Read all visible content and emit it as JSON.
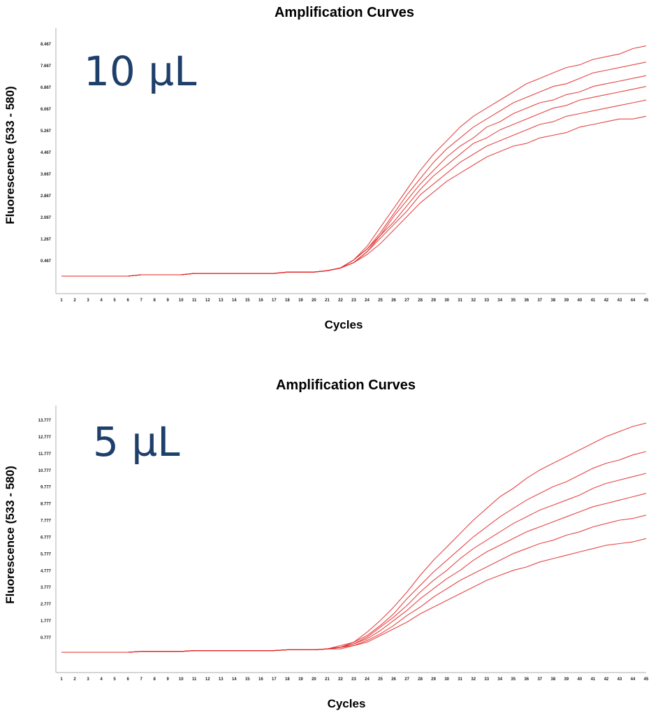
{
  "chart_data": [
    {
      "type": "line",
      "title": "Amplification Curves",
      "xlabel": "Cycles",
      "ylabel": "Fluorescence (533 - 580)",
      "annotation": "10 µL",
      "color": "#e02424",
      "annotation_color": "#1f3f6b",
      "x": [
        1,
        2,
        3,
        4,
        5,
        6,
        7,
        8,
        9,
        10,
        11,
        12,
        13,
        14,
        15,
        16,
        17,
        18,
        19,
        20,
        21,
        22,
        23,
        24,
        25,
        26,
        27,
        28,
        29,
        30,
        31,
        32,
        33,
        34,
        35,
        36,
        37,
        38,
        39,
        40,
        41,
        42,
        43,
        44,
        45
      ],
      "xlim": [
        1,
        45
      ],
      "ylim": [
        -0.2,
        8.9
      ],
      "yticks": [
        "0.467",
        "1.267",
        "2.067",
        "2.867",
        "3.667",
        "4.467",
        "5.267",
        "6.067",
        "6.867",
        "7.667",
        "8.467"
      ],
      "ytick_values": [
        0.467,
        1.267,
        2.067,
        2.867,
        3.667,
        4.467,
        5.267,
        6.067,
        6.867,
        7.667,
        8.467
      ],
      "grid": false,
      "series": [
        {
          "values": [
            -0.1,
            -0.1,
            -0.1,
            -0.1,
            -0.1,
            -0.1,
            -0.05,
            -0.05,
            -0.05,
            -0.05,
            0,
            0,
            0,
            0,
            0,
            0,
            0,
            0.05,
            0.05,
            0.05,
            0.1,
            0.2,
            0.4,
            0.7,
            1.1,
            1.6,
            2.1,
            2.6,
            3.0,
            3.4,
            3.7,
            4.0,
            4.3,
            4.5,
            4.7,
            4.8,
            5.0,
            5.1,
            5.2,
            5.4,
            5.5,
            5.6,
            5.7,
            5.7,
            5.8
          ]
        },
        {
          "values": [
            -0.1,
            -0.1,
            -0.1,
            -0.1,
            -0.1,
            -0.1,
            -0.05,
            -0.05,
            -0.05,
            -0.05,
            0,
            0,
            0,
            0,
            0,
            0,
            0,
            0.05,
            0.05,
            0.05,
            0.1,
            0.2,
            0.4,
            0.8,
            1.3,
            1.8,
            2.3,
            2.9,
            3.3,
            3.7,
            4.1,
            4.4,
            4.7,
            4.9,
            5.1,
            5.3,
            5.5,
            5.6,
            5.8,
            5.9,
            6.0,
            6.1,
            6.2,
            6.3,
            6.4
          ]
        },
        {
          "values": [
            -0.1,
            -0.1,
            -0.1,
            -0.1,
            -0.1,
            -0.1,
            -0.05,
            -0.05,
            -0.05,
            -0.05,
            0,
            0,
            0,
            0,
            0,
            0,
            0,
            0.05,
            0.05,
            0.05,
            0.1,
            0.2,
            0.4,
            0.8,
            1.4,
            1.9,
            2.5,
            3.1,
            3.6,
            4.0,
            4.4,
            4.8,
            5.0,
            5.3,
            5.5,
            5.7,
            5.9,
            6.1,
            6.2,
            6.4,
            6.5,
            6.6,
            6.7,
            6.8,
            6.9
          ]
        },
        {
          "values": [
            -0.1,
            -0.1,
            -0.1,
            -0.1,
            -0.1,
            -0.1,
            -0.05,
            -0.05,
            -0.05,
            -0.05,
            0,
            0,
            0,
            0,
            0,
            0,
            0,
            0.05,
            0.05,
            0.05,
            0.1,
            0.2,
            0.5,
            0.9,
            1.4,
            2.1,
            2.7,
            3.3,
            3.8,
            4.3,
            4.7,
            5.0,
            5.4,
            5.6,
            5.9,
            6.1,
            6.3,
            6.4,
            6.6,
            6.7,
            6.9,
            7.0,
            7.1,
            7.2,
            7.3
          ]
        },
        {
          "values": [
            -0.1,
            -0.1,
            -0.1,
            -0.1,
            -0.1,
            -0.1,
            -0.05,
            -0.05,
            -0.05,
            -0.05,
            0,
            0,
            0,
            0,
            0,
            0,
            0,
            0.05,
            0.05,
            0.05,
            0.1,
            0.2,
            0.5,
            0.9,
            1.5,
            2.2,
            2.9,
            3.5,
            4.1,
            4.6,
            5.0,
            5.4,
            5.7,
            6.0,
            6.3,
            6.5,
            6.7,
            6.9,
            7.0,
            7.2,
            7.4,
            7.5,
            7.6,
            7.7,
            7.8
          ]
        },
        {
          "values": [
            -0.1,
            -0.1,
            -0.1,
            -0.1,
            -0.1,
            -0.1,
            -0.05,
            -0.05,
            -0.05,
            -0.05,
            0,
            0,
            0,
            0,
            0,
            0,
            0,
            0.05,
            0.05,
            0.05,
            0.1,
            0.2,
            0.5,
            1.0,
            1.7,
            2.4,
            3.1,
            3.8,
            4.4,
            4.9,
            5.4,
            5.8,
            6.1,
            6.4,
            6.7,
            7.0,
            7.2,
            7.4,
            7.6,
            7.7,
            7.9,
            8.0,
            8.1,
            8.3,
            8.4
          ]
        }
      ]
    },
    {
      "type": "line",
      "title": "Amplification Curves",
      "xlabel": "Cycles",
      "ylabel": "Fluorescence (533 - 580)",
      "annotation": "5 µL",
      "color": "#e02424",
      "annotation_color": "#1f3f6b",
      "x": [
        1,
        2,
        3,
        4,
        5,
        6,
        7,
        8,
        9,
        10,
        11,
        12,
        13,
        14,
        15,
        16,
        17,
        18,
        19,
        20,
        21,
        22,
        23,
        24,
        25,
        26,
        27,
        28,
        29,
        30,
        31,
        32,
        33,
        34,
        35,
        36,
        37,
        38,
        39,
        40,
        41,
        42,
        43,
        44,
        45
      ],
      "xlim": [
        1,
        45
      ],
      "ylim": [
        -0.3,
        14.6
      ],
      "yticks": [
        "0.777",
        "1.777",
        "2.777",
        "3.777",
        "4.777",
        "5.777",
        "6.777",
        "7.777",
        "8.777",
        "9.777",
        "10.777",
        "11.777",
        "12.777",
        "13.777"
      ],
      "ytick_values": [
        0.777,
        1.777,
        2.777,
        3.777,
        4.777,
        5.777,
        6.777,
        7.777,
        8.777,
        9.777,
        10.777,
        11.777,
        12.777,
        13.777
      ],
      "grid": false,
      "series": [
        {
          "values": [
            -0.1,
            -0.1,
            -0.1,
            -0.1,
            -0.1,
            -0.1,
            -0.05,
            -0.05,
            -0.05,
            -0.05,
            0,
            0,
            0,
            0,
            0,
            0,
            0,
            0.05,
            0.05,
            0.05,
            0.1,
            0.1,
            0.3,
            0.5,
            0.9,
            1.3,
            1.7,
            2.2,
            2.6,
            3.0,
            3.4,
            3.8,
            4.2,
            4.5,
            4.8,
            5.0,
            5.3,
            5.5,
            5.7,
            5.9,
            6.1,
            6.3,
            6.4,
            6.5,
            6.7
          ]
        },
        {
          "values": [
            -0.1,
            -0.1,
            -0.1,
            -0.1,
            -0.1,
            -0.1,
            -0.05,
            -0.05,
            -0.05,
            -0.05,
            0,
            0,
            0,
            0,
            0,
            0,
            0,
            0.05,
            0.05,
            0.05,
            0.1,
            0.2,
            0.3,
            0.6,
            1.0,
            1.5,
            2.1,
            2.6,
            3.2,
            3.7,
            4.2,
            4.6,
            5.0,
            5.4,
            5.8,
            6.1,
            6.4,
            6.6,
            6.9,
            7.1,
            7.4,
            7.6,
            7.8,
            7.9,
            8.1
          ]
        },
        {
          "values": [
            -0.1,
            -0.1,
            -0.1,
            -0.1,
            -0.1,
            -0.1,
            -0.05,
            -0.05,
            -0.05,
            -0.05,
            0,
            0,
            0,
            0,
            0,
            0,
            0,
            0.05,
            0.05,
            0.05,
            0.1,
            0.2,
            0.4,
            0.7,
            1.2,
            1.8,
            2.4,
            3.1,
            3.7,
            4.3,
            4.8,
            5.4,
            5.9,
            6.3,
            6.7,
            7.1,
            7.4,
            7.7,
            8.0,
            8.3,
            8.6,
            8.8,
            9.0,
            9.2,
            9.4
          ]
        },
        {
          "values": [
            -0.1,
            -0.1,
            -0.1,
            -0.1,
            -0.1,
            -0.1,
            -0.05,
            -0.05,
            -0.05,
            -0.05,
            0,
            0,
            0,
            0,
            0,
            0,
            0,
            0.05,
            0.05,
            0.05,
            0.1,
            0.2,
            0.4,
            0.8,
            1.4,
            2.0,
            2.7,
            3.5,
            4.2,
            4.8,
            5.5,
            6.1,
            6.6,
            7.1,
            7.6,
            8.0,
            8.4,
            8.7,
            9.0,
            9.3,
            9.7,
            10.0,
            10.2,
            10.4,
            10.6
          ]
        },
        {
          "values": [
            -0.1,
            -0.1,
            -0.1,
            -0.1,
            -0.1,
            -0.1,
            -0.05,
            -0.05,
            -0.05,
            -0.05,
            0,
            0,
            0,
            0,
            0,
            0,
            0,
            0.05,
            0.05,
            0.05,
            0.1,
            0.2,
            0.5,
            0.9,
            1.5,
            2.2,
            3.1,
            3.9,
            4.7,
            5.4,
            6.1,
            6.8,
            7.4,
            8.0,
            8.5,
            9.0,
            9.4,
            9.8,
            10.1,
            10.5,
            10.9,
            11.2,
            11.4,
            11.7,
            11.9
          ]
        },
        {
          "values": [
            -0.1,
            -0.1,
            -0.1,
            -0.1,
            -0.1,
            -0.1,
            -0.05,
            -0.05,
            -0.05,
            -0.05,
            0,
            0,
            0,
            0,
            0,
            0,
            0,
            0.05,
            0.05,
            0.05,
            0.1,
            0.3,
            0.5,
            1.1,
            1.8,
            2.6,
            3.5,
            4.5,
            5.4,
            6.2,
            7.0,
            7.8,
            8.5,
            9.2,
            9.7,
            10.3,
            10.8,
            11.2,
            11.6,
            12.0,
            12.4,
            12.8,
            13.1,
            13.4,
            13.6
          ]
        }
      ]
    }
  ]
}
